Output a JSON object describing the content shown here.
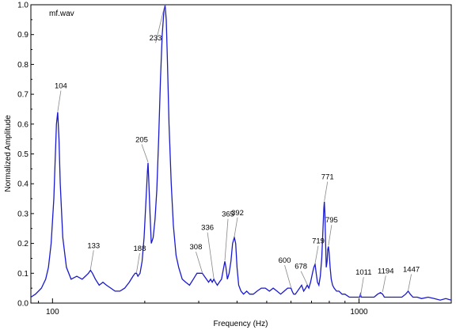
{
  "chart_data": {
    "type": "line",
    "title": "mf.wav",
    "xlabel": "Frequency  (Hz)",
    "ylabel": "Normalized Amplitude",
    "x_scale": "log",
    "xlim": [
      85,
      2000
    ],
    "ylim": [
      0,
      1.0
    ],
    "x_ticks": [
      {
        "value": 100,
        "label": "100"
      },
      {
        "value": 1000,
        "label": "1000"
      }
    ],
    "y_ticks": [
      {
        "value": 0.0,
        "label": "0.0"
      },
      {
        "value": 0.1,
        "label": "0.1"
      },
      {
        "value": 0.2,
        "label": "0.2"
      },
      {
        "value": 0.3,
        "label": "0.3"
      },
      {
        "value": 0.4,
        "label": "0.4"
      },
      {
        "value": 0.5,
        "label": "0.5"
      },
      {
        "value": 0.6,
        "label": "0.6"
      },
      {
        "value": 0.7,
        "label": "0.7"
      },
      {
        "value": 0.8,
        "label": "0.8"
      },
      {
        "value": 0.9,
        "label": "0.9"
      },
      {
        "value": 1.0,
        "label": "1.0"
      }
    ],
    "grid": false,
    "line_color": "#1a1acd",
    "series": [
      {
        "x": [
          85,
          88,
          92,
          95,
          97,
          99,
          101,
          102,
          103,
          104,
          105,
          106,
          108,
          111,
          115,
          120,
          125,
          128,
          131,
          133,
          135,
          138,
          142,
          146,
          150,
          155,
          160,
          166,
          172,
          178,
          183,
          186,
          188,
          190,
          193,
          196,
          199,
          202,
          204,
          205,
          206,
          208,
          210,
          213,
          216,
          219,
          222,
          225,
          228,
          231,
          233,
          235,
          237,
          240,
          244,
          248,
          253,
          258,
          265,
          272,
          280,
          288,
          296,
          303,
          308,
          313,
          318,
          323,
          328,
          332,
          336,
          340,
          345,
          350,
          356,
          362,
          365,
          368,
          372,
          377,
          382,
          387,
          392,
          396,
          400,
          405,
          412,
          420,
          430,
          440,
          452,
          465,
          480,
          495,
          510,
          525,
          540,
          555,
          570,
          585,
          595,
          600,
          605,
          612,
          620,
          630,
          640,
          650,
          660,
          670,
          678,
          686,
          695,
          705,
          712,
          719,
          725,
          732,
          740,
          748,
          756,
          763,
          768,
          771,
          774,
          778,
          782,
          787,
          791,
          795,
          799,
          805,
          812,
          820,
          830,
          845,
          860,
          880,
          900,
          930,
          960,
          990,
          1005,
          1011,
          1017,
          1030,
          1060,
          1090,
          1120,
          1150,
          1175,
          1194,
          1210,
          1240,
          1270,
          1300,
          1340,
          1380,
          1420,
          1447,
          1470,
          1500,
          1550,
          1600,
          1680,
          1760,
          1840,
          1920,
          2000
        ],
        "values": [
          0.02,
          0.03,
          0.05,
          0.08,
          0.12,
          0.2,
          0.35,
          0.48,
          0.6,
          0.64,
          0.55,
          0.4,
          0.22,
          0.12,
          0.08,
          0.09,
          0.08,
          0.09,
          0.1,
          0.11,
          0.1,
          0.08,
          0.06,
          0.07,
          0.06,
          0.05,
          0.04,
          0.04,
          0.05,
          0.07,
          0.09,
          0.1,
          0.1,
          0.09,
          0.1,
          0.14,
          0.22,
          0.35,
          0.44,
          0.47,
          0.42,
          0.3,
          0.2,
          0.22,
          0.28,
          0.38,
          0.55,
          0.75,
          0.9,
          0.98,
          1.0,
          0.95,
          0.82,
          0.6,
          0.4,
          0.26,
          0.16,
          0.12,
          0.08,
          0.07,
          0.06,
          0.08,
          0.1,
          0.1,
          0.1,
          0.09,
          0.08,
          0.07,
          0.08,
          0.07,
          0.08,
          0.07,
          0.06,
          0.07,
          0.08,
          0.12,
          0.14,
          0.12,
          0.08,
          0.1,
          0.14,
          0.2,
          0.22,
          0.2,
          0.12,
          0.06,
          0.04,
          0.03,
          0.04,
          0.03,
          0.03,
          0.04,
          0.05,
          0.05,
          0.04,
          0.05,
          0.04,
          0.03,
          0.04,
          0.05,
          0.05,
          0.05,
          0.04,
          0.03,
          0.03,
          0.04,
          0.05,
          0.06,
          0.04,
          0.05,
          0.06,
          0.05,
          0.07,
          0.1,
          0.12,
          0.13,
          0.1,
          0.07,
          0.06,
          0.09,
          0.15,
          0.25,
          0.32,
          0.34,
          0.3,
          0.2,
          0.12,
          0.14,
          0.18,
          0.19,
          0.17,
          0.12,
          0.08,
          0.06,
          0.05,
          0.04,
          0.04,
          0.03,
          0.03,
          0.02,
          0.02,
          0.02,
          0.02,
          0.03,
          0.02,
          0.02,
          0.02,
          0.02,
          0.02,
          0.03,
          0.035,
          0.03,
          0.02,
          0.02,
          0.02,
          0.02,
          0.02,
          0.02,
          0.03,
          0.04,
          0.03,
          0.02,
          0.02,
          0.015,
          0.02,
          0.015,
          0.01,
          0.015,
          0.01
        ]
      }
    ],
    "annotations": [
      {
        "text": "104",
        "x": 104,
        "y": 0.64,
        "label_y": 0.72
      },
      {
        "text": "133",
        "x": 133,
        "y": 0.11,
        "label_y": 0.185
      },
      {
        "text": "188",
        "x": 188,
        "y": 0.1,
        "label_y": 0.175
      },
      {
        "text": "205",
        "x": 205,
        "y": 0.47,
        "label_y": 0.54
      },
      {
        "text": "233",
        "x": 233,
        "y": 1.0,
        "label_y": 0.88
      },
      {
        "text": "308",
        "x": 308,
        "y": 0.1,
        "label_y": 0.18
      },
      {
        "text": "336",
        "x": 336,
        "y": 0.08,
        "label_y": 0.245
      },
      {
        "text": "365",
        "x": 365,
        "y": 0.14,
        "label_y": 0.29
      },
      {
        "text": "392",
        "x": 392,
        "y": 0.22,
        "label_y": 0.295
      },
      {
        "text": "600",
        "x": 600,
        "y": 0.05,
        "label_y": 0.135
      },
      {
        "text": "678",
        "x": 678,
        "y": 0.06,
        "label_y": 0.115
      },
      {
        "text": "719",
        "x": 719,
        "y": 0.13,
        "label_y": 0.2
      },
      {
        "text": "771",
        "x": 771,
        "y": 0.34,
        "label_y": 0.415
      },
      {
        "text": "795",
        "x": 795,
        "y": 0.19,
        "label_y": 0.27
      },
      {
        "text": "1011",
        "x": 1011,
        "y": 0.02,
        "label_y": 0.095
      },
      {
        "text": "1194",
        "x": 1194,
        "y": 0.035,
        "label_y": 0.1
      },
      {
        "text": "1447",
        "x": 1447,
        "y": 0.04,
        "label_y": 0.105
      }
    ]
  }
}
